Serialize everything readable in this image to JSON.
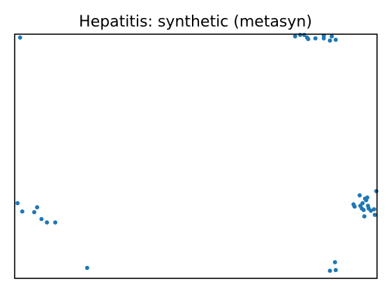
{
  "chart_data": {
    "type": "scatter",
    "title": "Hepatitis: synthetic (metasyn)",
    "xlabel": "",
    "ylabel": "",
    "show_ticks": false,
    "grid": false,
    "legend": false,
    "marker_color": "#1f77b4",
    "xlim": [
      0,
      100
    ],
    "ylim": [
      0,
      100
    ],
    "series": [
      {
        "points": [
          {
            "x": 1.5,
            "y": 98.6
          },
          {
            "x": 77.4,
            "y": 99.1
          },
          {
            "x": 78.8,
            "y": 99.7
          },
          {
            "x": 79.9,
            "y": 99.7
          },
          {
            "x": 80.7,
            "y": 98.6
          },
          {
            "x": 81.0,
            "y": 98.0
          },
          {
            "x": 83.0,
            "y": 98.3
          },
          {
            "x": 85.3,
            "y": 99.4
          },
          {
            "x": 85.3,
            "y": 98.3
          },
          {
            "x": 87.0,
            "y": 97.4
          },
          {
            "x": 87.5,
            "y": 99.1
          },
          {
            "x": 88.6,
            "y": 97.7
          },
          {
            "x": 0.8,
            "y": 30.8
          },
          {
            "x": 2.1,
            "y": 27.4
          },
          {
            "x": 5.4,
            "y": 27.1
          },
          {
            "x": 6.2,
            "y": 29.1
          },
          {
            "x": 7.4,
            "y": 24.3
          },
          {
            "x": 8.9,
            "y": 22.9
          },
          {
            "x": 11.2,
            "y": 22.9
          },
          {
            "x": 20.0,
            "y": 4.3
          },
          {
            "x": 87.0,
            "y": 3.1
          },
          {
            "x": 88.4,
            "y": 6.6
          },
          {
            "x": 88.6,
            "y": 3.4
          },
          {
            "x": 93.5,
            "y": 30.3
          },
          {
            "x": 93.8,
            "y": 29.4
          },
          {
            "x": 95.2,
            "y": 34.0
          },
          {
            "x": 95.4,
            "y": 29.7
          },
          {
            "x": 95.8,
            "y": 28.6
          },
          {
            "x": 96.0,
            "y": 30.8
          },
          {
            "x": 96.3,
            "y": 28.0
          },
          {
            "x": 96.5,
            "y": 25.4
          },
          {
            "x": 96.7,
            "y": 32.6
          },
          {
            "x": 97.0,
            "y": 32.0
          },
          {
            "x": 97.3,
            "y": 33.1
          },
          {
            "x": 97.5,
            "y": 29.7
          },
          {
            "x": 97.7,
            "y": 28.6
          },
          {
            "x": 98.3,
            "y": 27.7
          },
          {
            "x": 99.2,
            "y": 28.3
          },
          {
            "x": 99.4,
            "y": 26.0
          },
          {
            "x": 99.8,
            "y": 35.7
          }
        ]
      }
    ]
  }
}
